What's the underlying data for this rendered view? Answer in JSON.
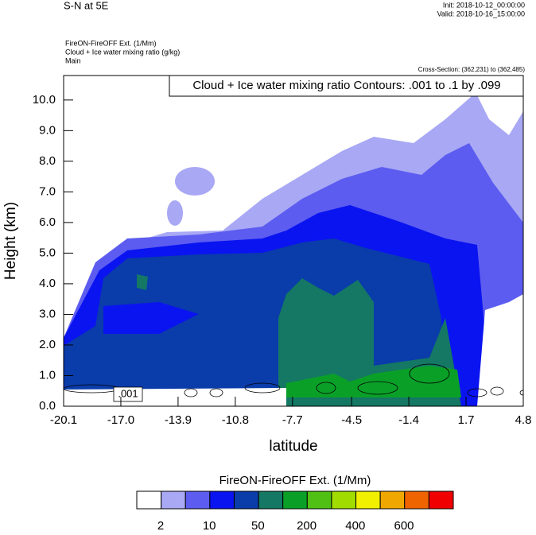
{
  "chart_data": {
    "type": "contour",
    "title": "S-N at 5E",
    "init": "Init: 2018-10-12_00:00:00",
    "valid": "Valid: 2018-10-16_15:00:00",
    "field_label": "FireON-FireOFF Ext.   (1/Mm)",
    "contour_field_label": "Cloud + Ice water mixing ratio   (g/kg)",
    "domain_label": "Main",
    "cross_section": "Cross-Section: (362,231) to (362,485)",
    "contour_info": "Cloud + Ice water mixing ratio Contours: .001 to .1 by .099",
    "contour_label": ".001",
    "x_label": "latitude",
    "y_label": "Height (km)",
    "xlim": [
      -20.1,
      4.8
    ],
    "ylim": [
      0,
      10.8
    ],
    "xticks": [
      -20.1,
      {
        "value": -17,
        "label": "-17.0"
      },
      -13.9,
      -10.8,
      -7.7,
      -4.5,
      -1.4,
      1.7,
      4.8
    ],
    "yticks": [
      {
        "value": 0,
        "label": "0.0"
      },
      {
        "value": 1,
        "label": "1.0"
      },
      {
        "value": 2,
        "label": "2.0"
      },
      {
        "value": 3,
        "label": "3.0"
      },
      {
        "value": 4,
        "label": "4.0"
      },
      {
        "value": 5,
        "label": "5.0"
      },
      {
        "value": 6,
        "label": "6.0"
      },
      {
        "value": 7,
        "label": "7.0"
      },
      {
        "value": 8,
        "label": "8.0"
      },
      {
        "value": 9,
        "label": "9.0"
      },
      {
        "value": 10,
        "label": "10.0"
      }
    ],
    "colorbar": {
      "title": "FireON-FireOFF Ext.  (1/Mm)",
      "colors": [
        "#ffffff",
        "#a8a8f5",
        "#5c5cf0",
        "#0a14f0",
        "#0a3caa",
        "#147864",
        "#0aa028",
        "#50c014",
        "#a0dc00",
        "#f0f000",
        "#f0a800",
        "#f06400",
        "#f00000"
      ],
      "labels": [
        2,
        10,
        50,
        200,
        400,
        600
      ]
    }
  }
}
